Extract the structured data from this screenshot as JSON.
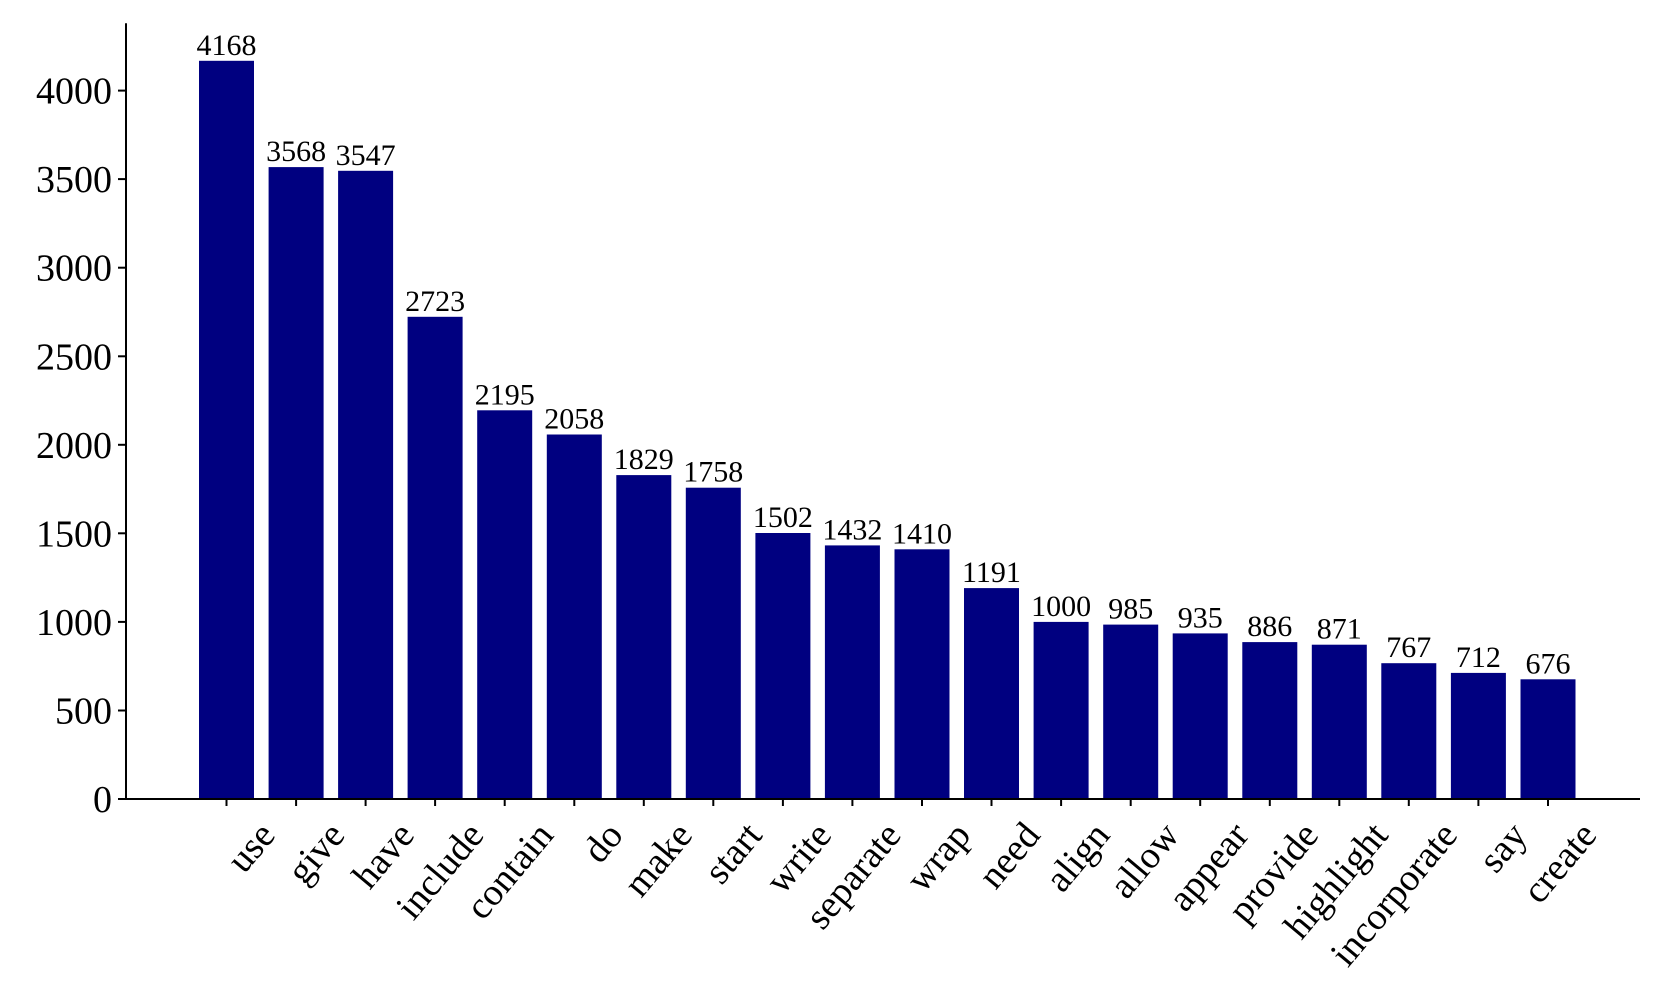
{
  "chart_data": {
    "type": "bar",
    "categories": [
      "use",
      "give",
      "have",
      "include",
      "contain",
      "do",
      "make",
      "start",
      "write",
      "separate",
      "wrap",
      "need",
      "align",
      "allow",
      "appear",
      "provide",
      "highlight",
      "incorporate",
      "say",
      "create"
    ],
    "values": [
      4168,
      3568,
      3547,
      2723,
      2195,
      2058,
      1829,
      1758,
      1502,
      1432,
      1410,
      1191,
      1000,
      985,
      935,
      886,
      871,
      767,
      712,
      676
    ],
    "data_labels": [
      "4168",
      "3568",
      "3547",
      "2723",
      "2195",
      "2058",
      "1829",
      "1758",
      "1502",
      "1432",
      "1410",
      "1191",
      "1000",
      "985",
      "935",
      "886",
      "871",
      "767",
      "712",
      "676"
    ],
    "yticks": [
      0,
      500,
      1000,
      1500,
      2000,
      2500,
      3000,
      3500,
      4000
    ],
    "ylim": [
      0,
      4380
    ],
    "title": "",
    "xlabel": "",
    "ylabel": "",
    "bar_color": "#000080",
    "grid": false,
    "legend": "none",
    "xtick_rotation": -50
  }
}
